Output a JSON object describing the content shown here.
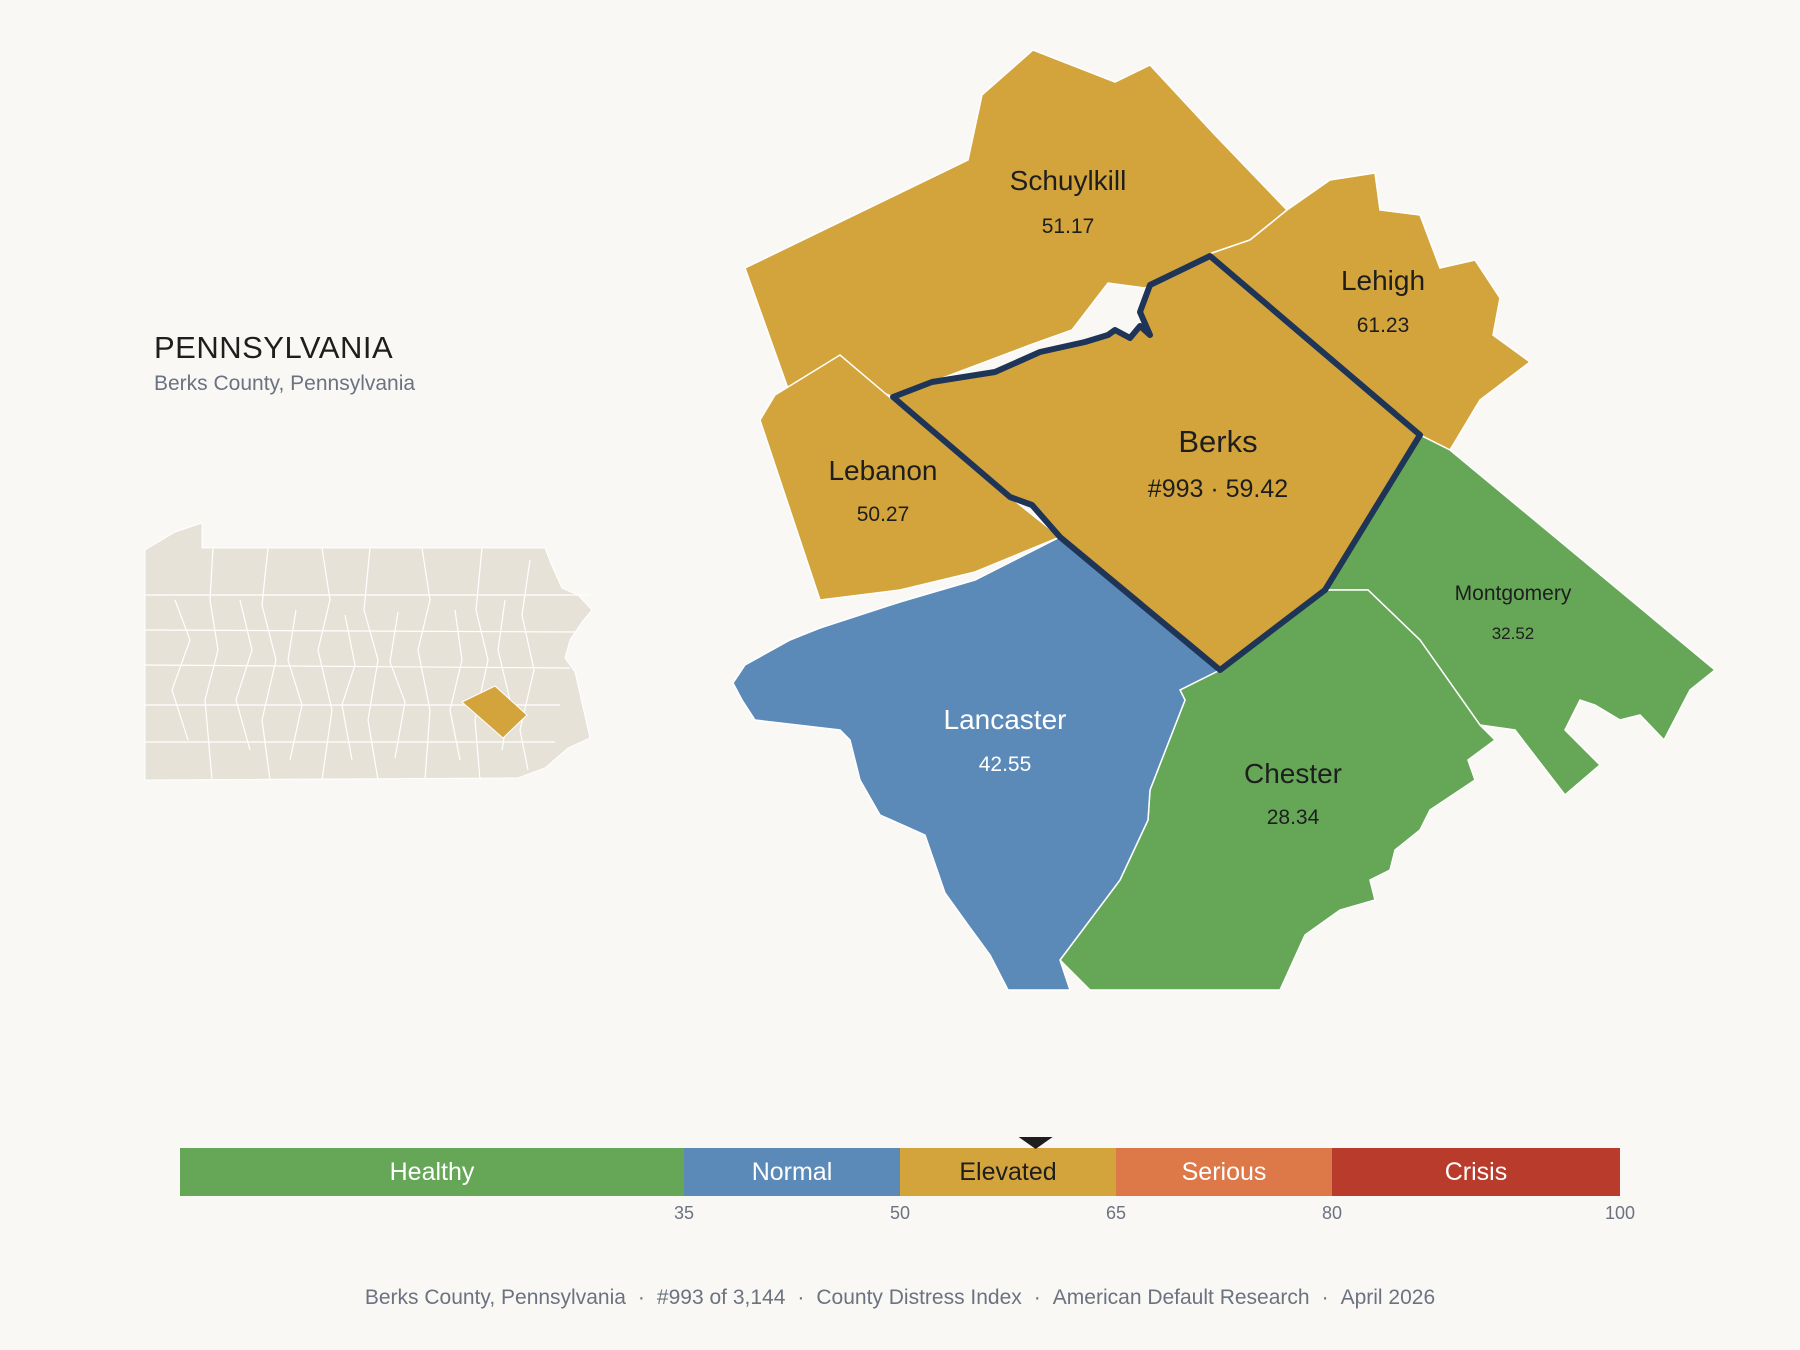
{
  "header": {
    "state": "PENNSYLVANIA",
    "subtitle": "Berks County, Pennsylvania"
  },
  "colors": {
    "healthy": "#66a757",
    "normal": "#5b8ab8",
    "elevated": "#d3a43c",
    "serious": "#dd7849",
    "crisis": "#b93b2c",
    "inset_fill": "#e7e2d8",
    "highlight_outline": "#1f3557",
    "background": "#f9f8f5"
  },
  "counties": [
    {
      "key": "schuylkill",
      "name": "Schuylkill",
      "value": "51.17",
      "tier": "elevated"
    },
    {
      "key": "lehigh",
      "name": "Lehigh",
      "value": "61.23",
      "tier": "elevated"
    },
    {
      "key": "lebanon",
      "name": "Lebanon",
      "value": "50.27",
      "tier": "elevated"
    },
    {
      "key": "berks",
      "name": "Berks",
      "value": "#993 · 59.42",
      "tier": "elevated",
      "focus": true
    },
    {
      "key": "montgomery",
      "name": "Montgomery",
      "value": "32.52",
      "tier": "healthy"
    },
    {
      "key": "lancaster",
      "name": "Lancaster",
      "value": "42.55",
      "tier": "normal"
    },
    {
      "key": "chester",
      "name": "Chester",
      "value": "28.34",
      "tier": "healthy"
    }
  ],
  "legend": {
    "segments": [
      {
        "label": "Healthy",
        "from": 0,
        "to": 35,
        "tier": "healthy"
      },
      {
        "label": "Normal",
        "from": 35,
        "to": 50,
        "tier": "normal"
      },
      {
        "label": "Elevated",
        "from": 50,
        "to": 65,
        "tier": "elevated"
      },
      {
        "label": "Serious",
        "from": 65,
        "to": 80,
        "tier": "serious"
      },
      {
        "label": "Crisis",
        "from": 80,
        "to": 100,
        "tier": "crisis"
      }
    ],
    "ticks": [
      "35",
      "50",
      "65",
      "80",
      "100"
    ],
    "marker_value": 59.42
  },
  "footer": {
    "county": "Berks County, Pennsylvania",
    "rank": "#993 of 3,144",
    "index": "County Distress Index",
    "source": "American Default Research",
    "date": "April 2026"
  }
}
